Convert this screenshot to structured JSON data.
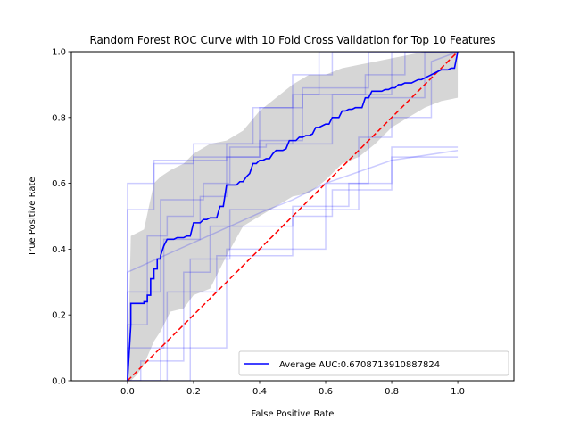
{
  "chart_data": {
    "type": "line",
    "title": "Random Forest ROC Curve with 10 Fold Cross Validation for Top 10 Features",
    "xlabel": "False Positive Rate",
    "ylabel": "True Positive Rate",
    "xlim": [
      -0.17,
      1.17
    ],
    "ylim": [
      0.0,
      1.0
    ],
    "xticks": [
      0.0,
      0.2,
      0.4,
      0.6,
      0.8,
      1.0
    ],
    "xtick_labels": [
      "0.0",
      "0.2",
      "0.4",
      "0.6",
      "0.8",
      "1.0"
    ],
    "yticks": [
      0.0,
      0.2,
      0.4,
      0.6,
      0.8,
      1.0
    ],
    "ytick_labels": [
      "0.0",
      "0.2",
      "0.4",
      "0.6",
      "0.8",
      "1.0"
    ],
    "grid": false,
    "legend_position": "lower-right",
    "legend_label": "Average AUC:0.6708713910887824",
    "colors": {
      "mean": "#0000ff",
      "folds": "#0000ff",
      "chance": "#ff0000",
      "band": "#c8c8c8"
    },
    "mean_curve": {
      "x": [
        0.0,
        0.01,
        0.01,
        0.05,
        0.05,
        0.06,
        0.06,
        0.07,
        0.07,
        0.08,
        0.08,
        0.09,
        0.09,
        0.1,
        0.1,
        0.11,
        0.12,
        0.14,
        0.15,
        0.17,
        0.18,
        0.19,
        0.2,
        0.21,
        0.22,
        0.23,
        0.24,
        0.25,
        0.26,
        0.27,
        0.28,
        0.29,
        0.3,
        0.31,
        0.32,
        0.33,
        0.34,
        0.35,
        0.36,
        0.37,
        0.38,
        0.39,
        0.4,
        0.41,
        0.42,
        0.43,
        0.44,
        0.45,
        0.46,
        0.47,
        0.48,
        0.49,
        0.5,
        0.51,
        0.52,
        0.53,
        0.54,
        0.55,
        0.56,
        0.57,
        0.58,
        0.59,
        0.6,
        0.61,
        0.62,
        0.63,
        0.64,
        0.65,
        0.66,
        0.67,
        0.68,
        0.69,
        0.7,
        0.71,
        0.72,
        0.73,
        0.74,
        0.75,
        0.76,
        0.77,
        0.78,
        0.79,
        0.8,
        0.81,
        0.82,
        0.83,
        0.84,
        0.85,
        0.86,
        0.87,
        0.88,
        0.89,
        0.9,
        0.91,
        0.92,
        0.93,
        0.94,
        0.95,
        0.96,
        0.97,
        0.98,
        0.99,
        1.0
      ],
      "y": [
        0.0,
        0.17,
        0.235,
        0.235,
        0.24,
        0.24,
        0.26,
        0.26,
        0.31,
        0.31,
        0.34,
        0.34,
        0.37,
        0.37,
        0.38,
        0.41,
        0.43,
        0.43,
        0.435,
        0.435,
        0.44,
        0.44,
        0.48,
        0.48,
        0.48,
        0.49,
        0.49,
        0.495,
        0.495,
        0.495,
        0.53,
        0.53,
        0.595,
        0.595,
        0.595,
        0.595,
        0.605,
        0.605,
        0.62,
        0.63,
        0.66,
        0.66,
        0.67,
        0.67,
        0.675,
        0.675,
        0.69,
        0.7,
        0.7,
        0.7,
        0.705,
        0.73,
        0.73,
        0.73,
        0.74,
        0.74,
        0.745,
        0.745,
        0.75,
        0.77,
        0.77,
        0.775,
        0.78,
        0.78,
        0.8,
        0.8,
        0.8,
        0.82,
        0.82,
        0.825,
        0.825,
        0.83,
        0.83,
        0.83,
        0.86,
        0.86,
        0.88,
        0.88,
        0.88,
        0.88,
        0.885,
        0.885,
        0.89,
        0.89,
        0.9,
        0.9,
        0.905,
        0.905,
        0.905,
        0.91,
        0.915,
        0.915,
        0.92,
        0.925,
        0.93,
        0.935,
        0.94,
        0.945,
        0.945,
        0.945,
        0.95,
        0.95,
        1.0
      ]
    },
    "band": {
      "x": [
        0.0,
        0.01,
        0.03,
        0.05,
        0.08,
        0.1,
        0.13,
        0.17,
        0.2,
        0.25,
        0.3,
        0.35,
        0.4,
        0.45,
        0.5,
        0.55,
        0.6,
        0.65,
        0.7,
        0.75,
        0.8,
        0.85,
        0.9,
        0.95,
        1.0
      ],
      "upper": [
        0.0,
        0.44,
        0.45,
        0.46,
        0.6,
        0.62,
        0.64,
        0.66,
        0.69,
        0.72,
        0.73,
        0.76,
        0.82,
        0.86,
        0.9,
        0.93,
        0.93,
        0.95,
        0.96,
        0.97,
        0.98,
        0.99,
        1.0,
        1.0,
        1.0
      ],
      "lower": [
        0.0,
        0.0,
        0.02,
        0.05,
        0.12,
        0.15,
        0.21,
        0.22,
        0.26,
        0.28,
        0.38,
        0.47,
        0.5,
        0.53,
        0.56,
        0.57,
        0.61,
        0.66,
        0.68,
        0.72,
        0.77,
        0.8,
        0.83,
        0.85,
        0.86
      ]
    },
    "fold_curves": [
      {
        "x": [
          0.0,
          0.0,
          0.08,
          0.08,
          0.3,
          0.3,
          0.5,
          0.5,
          0.58,
          0.58,
          1.0
        ],
        "y": [
          0.0,
          0.52,
          0.52,
          0.67,
          0.67,
          0.72,
          0.72,
          0.87,
          0.87,
          1.0,
          1.0
        ]
      },
      {
        "x": [
          0.0,
          0.0,
          0.08,
          0.08,
          0.2,
          0.2,
          0.38,
          0.38,
          0.5,
          0.5,
          0.62,
          0.62,
          1.0
        ],
        "y": [
          0.0,
          0.6,
          0.6,
          0.66,
          0.66,
          0.72,
          0.72,
          0.83,
          0.83,
          0.93,
          0.93,
          1.0,
          1.0
        ]
      },
      {
        "x": [
          0.0,
          0.0,
          0.06,
          0.06,
          0.12,
          0.12,
          0.2,
          0.2,
          0.4,
          0.4,
          0.53,
          0.53,
          0.73,
          0.73,
          1.0
        ],
        "y": [
          0.0,
          0.17,
          0.17,
          0.44,
          0.44,
          0.5,
          0.5,
          0.68,
          0.68,
          0.83,
          0.83,
          0.89,
          0.89,
          1.0,
          1.0
        ]
      },
      {
        "x": [
          0.0,
          0.0,
          0.11,
          0.11,
          0.22,
          0.22,
          0.3,
          0.3,
          0.4,
          0.4,
          0.53,
          0.53,
          0.72,
          0.72,
          0.84,
          0.84,
          1.0
        ],
        "y": [
          0.0,
          0.1,
          0.1,
          0.43,
          0.43,
          0.56,
          0.56,
          0.68,
          0.68,
          0.73,
          0.73,
          0.87,
          0.87,
          0.93,
          0.93,
          1.0,
          1.0
        ]
      },
      {
        "x": [
          0.0,
          0.0,
          0.1,
          0.1,
          0.23,
          0.23,
          0.31,
          0.31,
          0.42,
          0.42,
          0.62,
          0.62,
          0.8,
          0.8,
          1.0
        ],
        "y": [
          0.0,
          0.27,
          0.27,
          0.55,
          0.55,
          0.6,
          0.6,
          0.71,
          0.71,
          0.72,
          0.72,
          0.87,
          0.87,
          1.0,
          1.0
        ]
      },
      {
        "x": [
          0.0,
          0.0,
          0.1,
          0.1,
          0.3,
          0.3,
          0.6,
          0.6,
          0.73,
          0.73,
          0.9,
          0.9,
          1.0
        ],
        "y": [
          0.0,
          0.0,
          0.0,
          0.1,
          0.1,
          0.4,
          0.4,
          0.6,
          0.6,
          0.86,
          0.86,
          1.0,
          1.0
        ]
      },
      {
        "x": [
          0.0,
          0.0,
          0.19,
          0.19,
          0.31,
          0.31,
          0.7,
          0.7,
          0.8,
          0.8,
          0.92,
          0.92,
          1.0
        ],
        "y": [
          0.0,
          0.0,
          0.0,
          0.37,
          0.37,
          0.52,
          0.52,
          0.74,
          0.74,
          0.8,
          0.8,
          0.97,
          1.0
        ]
      },
      {
        "x": [
          0.0,
          0.0,
          0.04,
          0.04,
          0.17,
          0.17,
          0.25,
          0.25,
          0.5,
          0.5,
          0.67,
          0.67,
          0.8,
          0.8,
          1.0
        ],
        "y": [
          0.0,
          0.0,
          0.0,
          0.06,
          0.06,
          0.33,
          0.33,
          0.47,
          0.47,
          0.53,
          0.53,
          0.6,
          0.6,
          0.71,
          0.71
        ]
      },
      {
        "x": [
          0.0,
          0.0,
          0.12,
          0.12,
          0.27,
          0.27,
          0.5,
          0.5,
          0.62,
          0.62,
          0.8,
          0.8,
          1.0
        ],
        "y": [
          0.0,
          0.0,
          0.0,
          0.27,
          0.27,
          0.38,
          0.38,
          0.5,
          0.5,
          0.58,
          0.58,
          0.68,
          0.68
        ]
      },
      {
        "x": [
          0.0,
          0.0,
          0.4,
          0.5,
          0.6,
          0.8,
          1.0
        ],
        "y": [
          0.0,
          0.33,
          0.51,
          0.55,
          0.6,
          0.67,
          0.7
        ]
      }
    ],
    "chance_line": {
      "x": [
        0.0,
        1.0
      ],
      "y": [
        0.0,
        1.0
      ]
    }
  }
}
